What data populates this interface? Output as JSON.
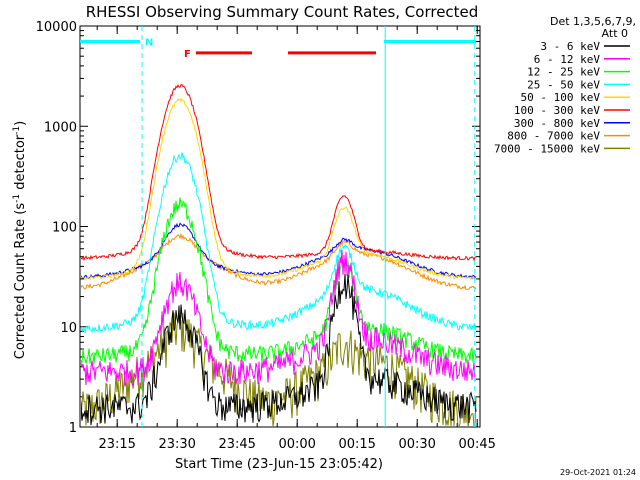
{
  "chart_data": {
    "type": "line",
    "title": "RHESSI Observing Summary Count Rates, Corrected",
    "xlabel": "Start Time (23-Jun-15 23:05:42)",
    "ylabel": "Corrected Count Rate (s",
    "ylabel_sup1": "-1",
    "ylabel_mid": " detector",
    "ylabel_sup2": "-1",
    "ylabel_end": ")",
    "yscale": "log",
    "ylim": [
      1,
      10000
    ],
    "xlim_minutes": [
      0,
      100
    ],
    "y_ticks": [
      {
        "value": 1,
        "label": "1"
      },
      {
        "value": 10,
        "label": "10"
      },
      {
        "value": 100,
        "label": "100"
      },
      {
        "value": 1000,
        "label": "1000"
      },
      {
        "value": 10000,
        "label": "10000"
      }
    ],
    "x_ticks": [
      {
        "minute": 9.3,
        "label": "23:15"
      },
      {
        "minute": 24.3,
        "label": "23:30"
      },
      {
        "minute": 39.3,
        "label": "23:45"
      },
      {
        "minute": 54.3,
        "label": "00:00"
      },
      {
        "minute": 69.3,
        "label": "00:15"
      },
      {
        "minute": 84.3,
        "label": "00:30"
      },
      {
        "minute": 99.3,
        "label": "00:45"
      }
    ],
    "legend_header": [
      "Det 1,3,5,6,7,9,",
      "Att 0"
    ],
    "series": [
      {
        "name": "3 - 6 keV",
        "color": "#000000",
        "base": 1.6,
        "p1": 14,
        "p2": 45,
        "dome1": 1.0,
        "dome2": 2.0,
        "noise": 0.35
      },
      {
        "name": "6 - 12 keV",
        "color": "#ff00ff",
        "base": 3.6,
        "p1": 30,
        "p2": 70,
        "dome1": 1.0,
        "dome2": 2.2,
        "noise": 0.3
      },
      {
        "name": "12 - 25 keV",
        "color": "#00ff00",
        "base": 5.0,
        "p1": 180,
        "p2": 60,
        "dome1": 1.3,
        "dome2": 2.0,
        "noise": 0.2
      },
      {
        "name": "25 - 50 keV",
        "color": "#00ffff",
        "base": 9.5,
        "p1": 560,
        "p2": 75,
        "dome1": 1.4,
        "dome2": 2.5,
        "noise": 0.1
      },
      {
        "name": "50 - 100 keV",
        "color": "#ffd700",
        "base": 30,
        "p1": 2000,
        "p2": 200,
        "dome1": 1.5,
        "dome2": 1.8,
        "noise": 0.04
      },
      {
        "name": "100 - 300 keV",
        "color": "#ff0000",
        "base": 48,
        "p1": 2800,
        "p2": 290,
        "dome1": 1.4,
        "dome2": 1.2,
        "noise": 0.04
      },
      {
        "name": "300 - 800 keV",
        "color": "#0000ff",
        "base": 31,
        "p1": 95,
        "p2": 60,
        "dome1": 1.5,
        "dome2": 1.9,
        "noise": 0.04
      },
      {
        "name": "800 - 7000 keV",
        "color": "#ff8c00",
        "base": 24,
        "p1": 55,
        "p2": 55,
        "dome1": 2.2,
        "dome2": 2.2,
        "noise": 0.05
      },
      {
        "name": "7000 - 15000 keV",
        "color": "#808000",
        "base": 1.4,
        "p1": 6,
        "p2": 5.5,
        "dome1": 4.0,
        "dome2": 3.5,
        "noise": 0.5
      }
    ],
    "bars": [
      {
        "label": "N",
        "color": "#00ffff",
        "segments": [
          [
            0,
            15
          ],
          [
            76,
            99
          ]
        ],
        "level": 7000
      },
      {
        "label": "F",
        "color": "#ff0000",
        "segments": [
          [
            29,
            43
          ],
          [
            52,
            74
          ]
        ],
        "level": 5400
      }
    ],
    "vertical_lines": [
      {
        "minute": 15.5,
        "color": "#00ffff",
        "dashed": true
      },
      {
        "minute": 76.3,
        "color": "#00ffff",
        "dashed": false
      },
      {
        "minute": 98.7,
        "color": "#00ffff",
        "dashed": true
      }
    ],
    "footer_timestamp": "29-Oct-2021 01:24"
  }
}
